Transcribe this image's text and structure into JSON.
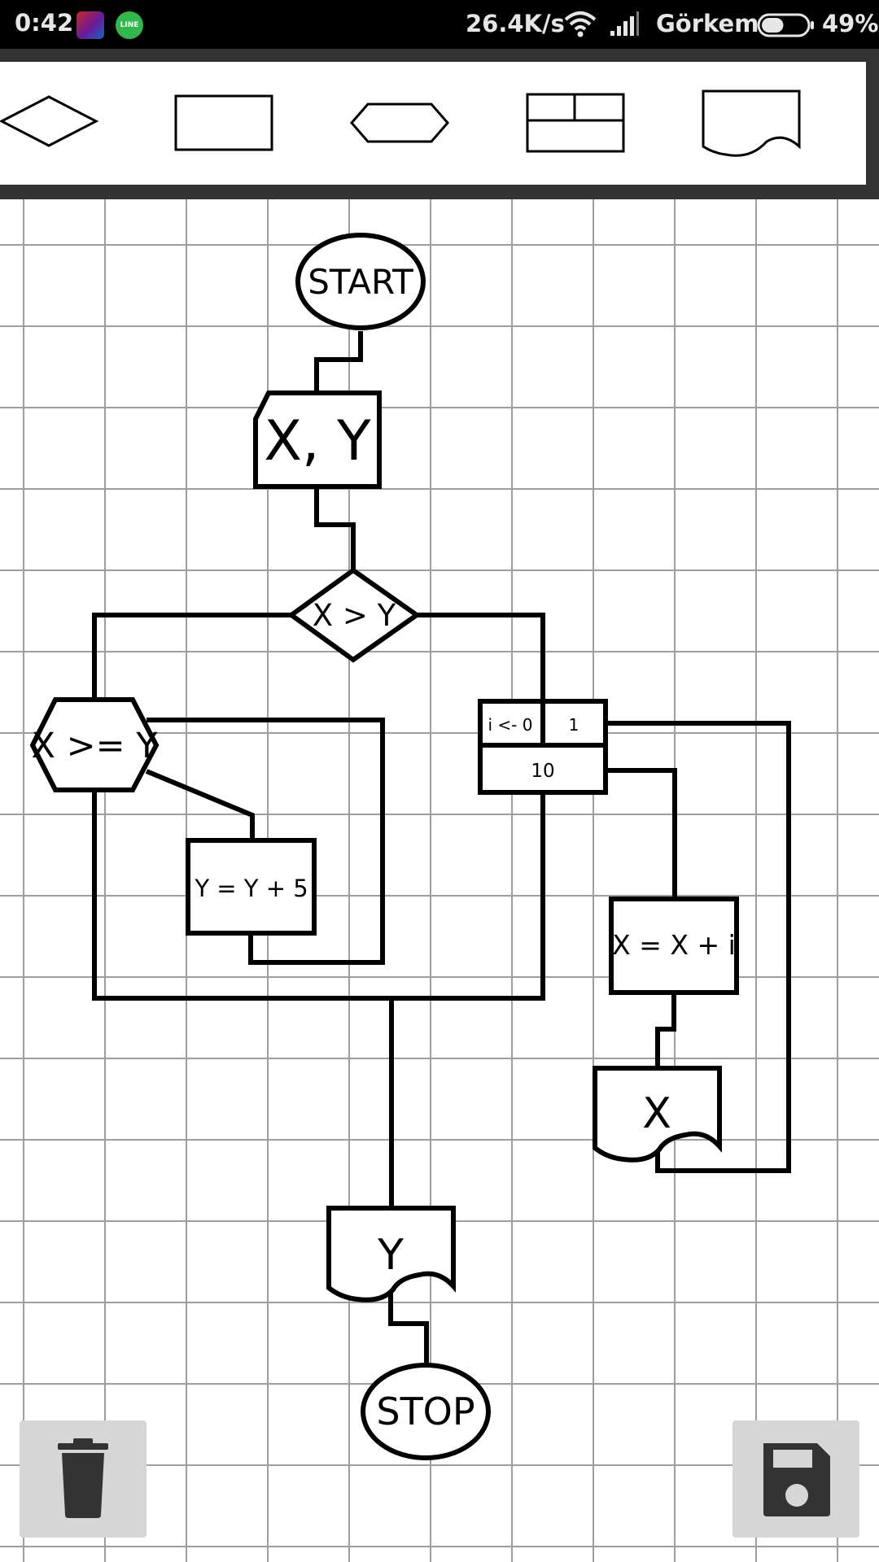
{
  "status_bar": {
    "time": "0:42",
    "line_badge": "LINE",
    "network_speed": "26.4K/s",
    "carrier": "Görkem",
    "battery": "49%",
    "battery_level": 0.49
  },
  "palette": {
    "items": [
      {
        "name": "decision",
        "icon": "diamond-shape-icon"
      },
      {
        "name": "process",
        "icon": "rectangle-shape-icon"
      },
      {
        "name": "preparation",
        "icon": "hexagon-shape-icon"
      },
      {
        "name": "loop",
        "icon": "loop-block-shape-icon"
      },
      {
        "name": "document",
        "icon": "document-shape-icon"
      }
    ]
  },
  "flowchart": {
    "start": "START",
    "input": "X, Y",
    "decision": "X > Y",
    "condition": "X >= Y",
    "assign_y": "Y = Y + 5",
    "loop_init": "i <- 0",
    "loop_step": "1",
    "loop_limit": "10",
    "assign_x": "X = X + i",
    "output_x": "X",
    "output_y": "Y",
    "stop": "STOP"
  },
  "actions": {
    "delete_icon": "trash-icon",
    "save_icon": "floppy-disk-icon"
  },
  "colors": {
    "status_bar": "#000000",
    "palette_frame": "#333333",
    "grid_line": "#9e9e9e",
    "button_bg": "#d6d6d6",
    "button_icon": "#333333",
    "stroke": "#000000"
  }
}
